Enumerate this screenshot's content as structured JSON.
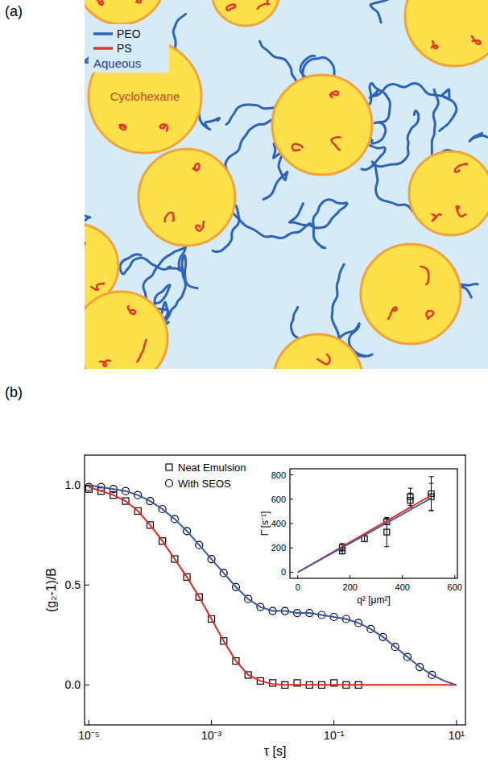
{
  "diagram": {
    "label": "(a)",
    "legend": [
      {
        "name": "PEO",
        "color": "#2d62bd"
      },
      {
        "name": "PS",
        "color": "#e8342a"
      }
    ],
    "continuous_phase": "Aqueous",
    "droplet_phase": "Cyclohexane"
  },
  "chart_data": [
    {
      "panel_label": "(b)",
      "type": "scatter",
      "log": "x",
      "legend": "top-left",
      "x_label": "τ [s]",
      "y_label": "(g₂-1)/B",
      "xlim": [
        8.5e-06,
        14
      ],
      "ylim": [
        -0.2,
        1.15
      ],
      "xticks": [
        {
          "value": 1e-05,
          "label": "10⁻⁵"
        },
        {
          "value": 0.001,
          "label": "10⁻³"
        },
        {
          "value": 0.1,
          "label": "10⁻¹"
        },
        {
          "value": 10,
          "label": "10¹"
        }
      ],
      "yticks": [
        {
          "value": 0,
          "label": "0.0"
        },
        0.5,
        {
          "value": 1,
          "label": "1.0"
        }
      ],
      "series": [
        {
          "name": "Neat Emulsion",
          "type": "scatter",
          "marker": "square",
          "color": "#000000",
          "x": [
            1e-05,
            1.585e-05,
            2.512e-05,
            3.981e-05,
            6.31e-05,
            0.0001,
            0.0001585,
            0.0002512,
            0.0003981,
            0.000631,
            0.001,
            0.001585,
            0.002512,
            0.003981,
            0.00631,
            0.01,
            0.01585,
            0.02512,
            0.03981,
            0.0631,
            0.1,
            0.1585,
            0.2512
          ],
          "values": [
            0.98,
            0.97,
            0.95,
            0.92,
            0.87,
            0.8,
            0.72,
            0.63,
            0.54,
            0.44,
            0.33,
            0.22,
            0.12,
            0.05,
            0.02,
            0.01,
            0.0,
            0.01,
            0.0,
            0.0,
            0.01,
            0.0,
            0.0
          ]
        },
        {
          "name": "With SEOS",
          "type": "scatter",
          "marker": "circle",
          "color": "#000000",
          "x": [
            1e-05,
            1.585e-05,
            2.512e-05,
            3.981e-05,
            6.31e-05,
            0.0001,
            0.0001585,
            0.0002512,
            0.0003981,
            0.000631,
            0.001,
            0.001585,
            0.002512,
            0.003981,
            0.00631,
            0.01,
            0.01585,
            0.02512,
            0.03981,
            0.0631,
            0.1,
            0.1585,
            0.2512,
            0.3981,
            0.631,
            1,
            1.585,
            2.512,
            3.981
          ],
          "values": [
            0.99,
            0.99,
            0.98,
            0.97,
            0.95,
            0.92,
            0.88,
            0.83,
            0.77,
            0.7,
            0.63,
            0.56,
            0.49,
            0.43,
            0.39,
            0.37,
            0.37,
            0.36,
            0.36,
            0.35,
            0.34,
            0.33,
            0.31,
            0.28,
            0.24,
            0.19,
            0.14,
            0.09,
            0.05
          ]
        },
        {
          "type": "line",
          "color": "#e8251f",
          "x": [
            1e-05,
            1.585e-05,
            2.512e-05,
            3.981e-05,
            6.31e-05,
            0.0001,
            0.0001585,
            0.0002512,
            0.0003981,
            0.000631,
            0.001,
            0.001585,
            0.002512,
            0.003981,
            0.00631,
            0.01,
            0.01585,
            0.02512,
            0.03981,
            0.0631,
            0.1,
            0.1585,
            0.2512,
            0.3981,
            0.631,
            1,
            1.585,
            2.512,
            3.981,
            6.31,
            10
          ],
          "values": [
            0.99,
            0.97,
            0.95,
            0.92,
            0.87,
            0.8,
            0.72,
            0.63,
            0.54,
            0.44,
            0.33,
            0.22,
            0.12,
            0.05,
            0.02,
            0.005,
            0,
            0,
            0,
            0,
            0,
            0,
            0,
            0,
            0,
            0,
            0,
            0,
            0,
            0,
            0
          ]
        },
        {
          "type": "line",
          "color": "#3b55a5",
          "x": [
            1e-05,
            1.585e-05,
            2.512e-05,
            3.981e-05,
            6.31e-05,
            0.0001,
            0.0001585,
            0.0002512,
            0.0003981,
            0.000631,
            0.001,
            0.001585,
            0.002512,
            0.003981,
            0.00631,
            0.01,
            0.01585,
            0.02512,
            0.03981,
            0.0631,
            0.1,
            0.1585,
            0.2512,
            0.3981,
            0.631,
            1,
            1.585,
            2.512,
            3.981,
            6.31,
            10
          ],
          "values": [
            1.0,
            0.99,
            0.98,
            0.97,
            0.95,
            0.92,
            0.88,
            0.83,
            0.77,
            0.7,
            0.63,
            0.56,
            0.49,
            0.43,
            0.39,
            0.37,
            0.37,
            0.36,
            0.36,
            0.35,
            0.34,
            0.33,
            0.31,
            0.28,
            0.24,
            0.19,
            0.14,
            0.09,
            0.05,
            0.02,
            0.0
          ]
        }
      ]
    },
    {
      "type": "scatter",
      "x_label": "q² [μm²]",
      "y_label": "Γ̄ [s⁻¹]",
      "xlim": [
        -30,
        610
      ],
      "ylim": [
        -50,
        850
      ],
      "xticks": [
        0,
        200,
        400,
        600
      ],
      "yticks": [
        0,
        200,
        400,
        600,
        800
      ],
      "series": [
        {
          "type": "scatter",
          "marker": "square",
          "color": "#000000",
          "x": [
            170,
            170,
            255,
            340,
            340,
            430,
            430,
            510,
            510
          ],
          "values": [
            175,
            205,
            275,
            415,
            330,
            590,
            620,
            620,
            645
          ],
          "errors": [
            25,
            30,
            25,
            25,
            120,
            60,
            70,
            110,
            140
          ]
        },
        {
          "type": "line",
          "color": "#e8251f",
          "x": [
            0,
            510
          ],
          "values": [
            0,
            632
          ]
        },
        {
          "type": "line",
          "color": "#3b55a5",
          "x": [
            0,
            510
          ],
          "values": [
            0,
            608
          ]
        }
      ]
    }
  ]
}
